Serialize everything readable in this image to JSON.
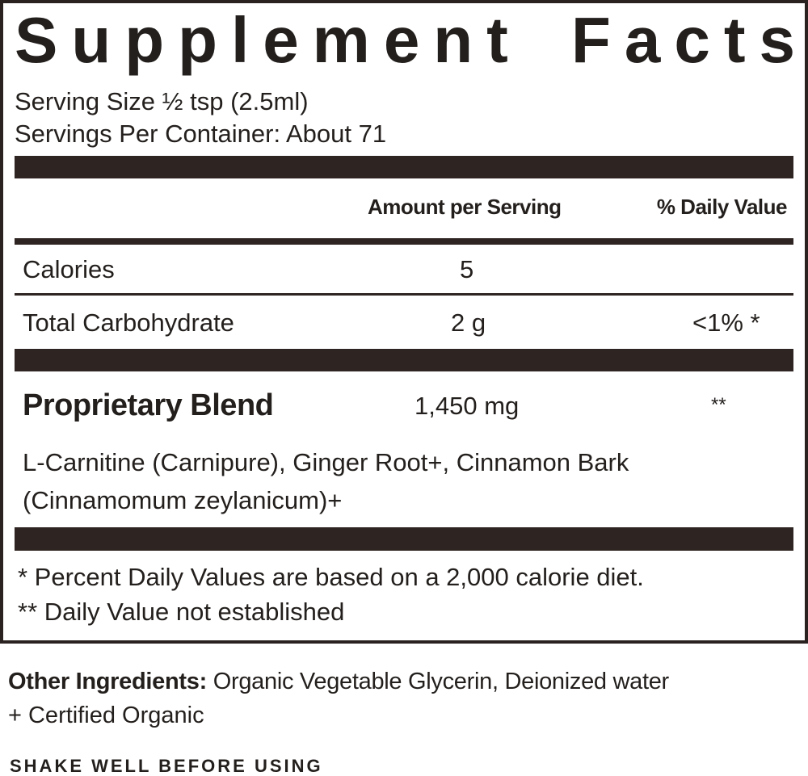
{
  "header": {
    "title": "Supplement Facts",
    "serving_size": "Serving Size ½ tsp (2.5ml)",
    "servings_per_container": "Servings Per Container: About 71"
  },
  "table": {
    "columns": [
      "Amount per Serving",
      "% Daily Value"
    ],
    "rows": [
      [
        "Calories",
        "5",
        null
      ],
      [
        "Total Carbohydrate",
        "2 g",
        "<1% *"
      ]
    ]
  },
  "blend": {
    "name": "Proprietary Blend",
    "amount": "1,450 mg",
    "daily_value": "**",
    "ingredients": [
      "L-Carnitine (Carnipure), Ginger Root+, Cinnamon Bark",
      "(Cinnamomum zeylanicum)+"
    ]
  },
  "footnotes": [
    "* Percent Daily Values are based on a 2,000 calorie diet.",
    "** Daily Value not established"
  ],
  "other_ingredients": {
    "label": "Other Ingredients:",
    "text": "Organic Vegetable Glycerin, Deionized water",
    "note": "+ Certified Organic"
  },
  "instruction": "SHAKE WELL BEFORE USING"
}
